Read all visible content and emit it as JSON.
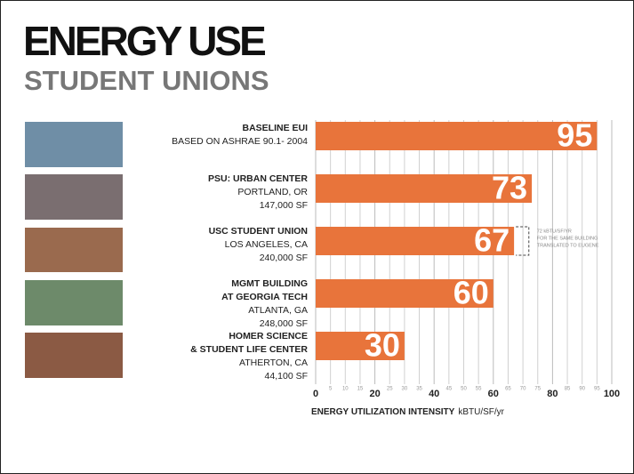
{
  "chart_data": {
    "type": "hbar",
    "title": "ENERGY USE",
    "subtitle": "STUDENT UNIONS",
    "categories": [
      [
        "BASELINE EUI",
        "BASED ON ASHRAE 90.1- 2004"
      ],
      [
        "PSU: URBAN CENTER",
        "PORTLAND, OR",
        "147,000 SF"
      ],
      [
        "USC STUDENT UNION",
        "LOS ANGELES, CA",
        "240,000 SF"
      ],
      [
        "MGMT BUILDING",
        "AT GEORGIA TECH",
        "ATLANTA, GA",
        "248,000 SF"
      ],
      [
        "HOMER SCIENCE",
        "& STUDENT LIFE CENTER",
        "ATHERTON, CA",
        "44,100 SF"
      ]
    ],
    "values": [
      95,
      73,
      67,
      60,
      30
    ],
    "color": "#e8743b",
    "xlim": [
      0,
      100
    ],
    "xticks": [
      0,
      20,
      40,
      60,
      80,
      100
    ],
    "xminorticks": [
      5,
      10,
      15,
      25,
      30,
      35,
      45,
      50,
      55,
      65,
      70,
      75,
      85,
      90,
      95
    ],
    "grid": true,
    "xlabel": "ENERGY UTILIZATION INTENSITY",
    "xunit": "kBTU/SF/yr",
    "annotation": {
      "value": 72,
      "bar": 2,
      "lines": [
        "72 kBTU/SF/YR",
        "FOR THE SAME BUILDING",
        "TRANSLATED TO EUGENE"
      ]
    }
  }
}
